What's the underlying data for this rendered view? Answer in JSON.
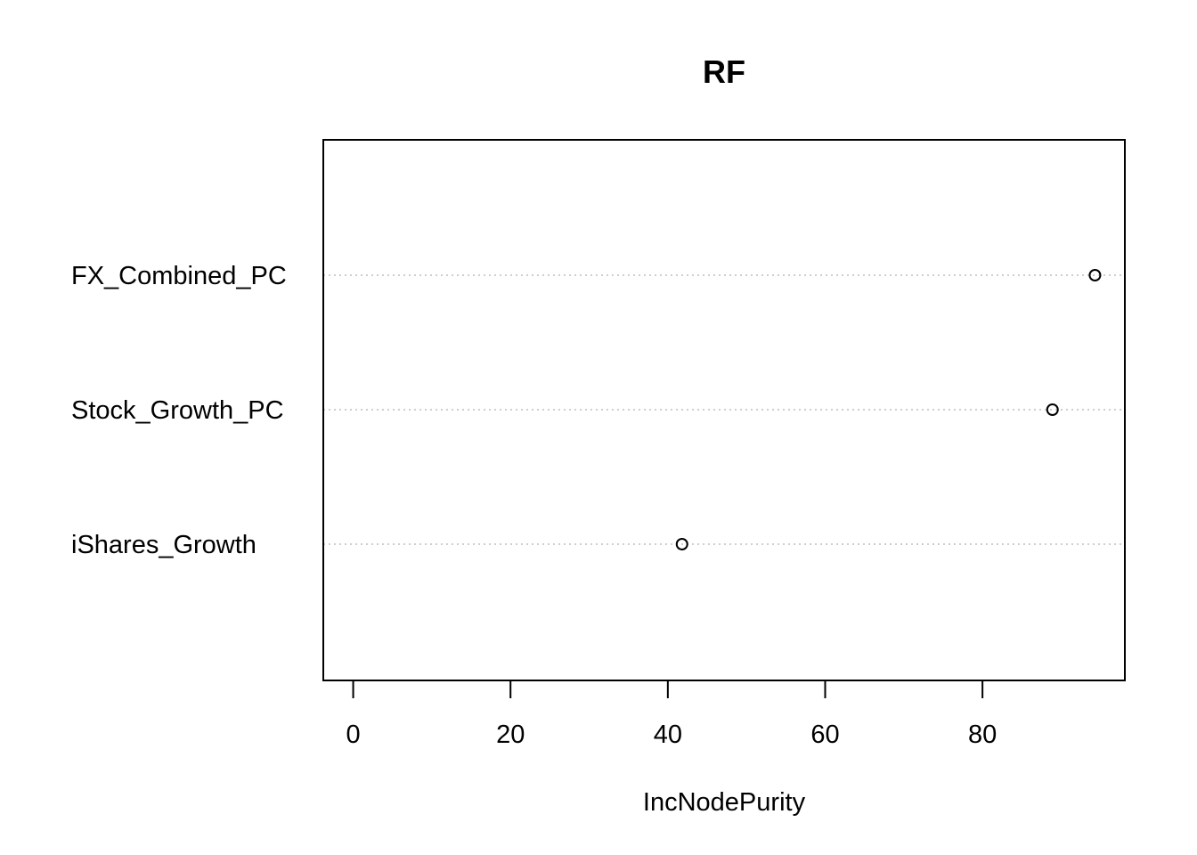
{
  "chart_data": {
    "type": "scatter",
    "title": "RF",
    "xlabel": "IncNodePurity",
    "ylabel": "",
    "categories": [
      "FX_Combined_PC",
      "Stock_Growth_PC",
      "iShares_Growth"
    ],
    "values": [
      94.3,
      88.9,
      41.8
    ],
    "xlim": [
      -3.8,
      98.1
    ],
    "xticks": [
      0,
      20,
      40,
      60,
      80
    ],
    "grid": "dotted horizontal lines per category",
    "legend": "none",
    "marker": "open circle"
  }
}
